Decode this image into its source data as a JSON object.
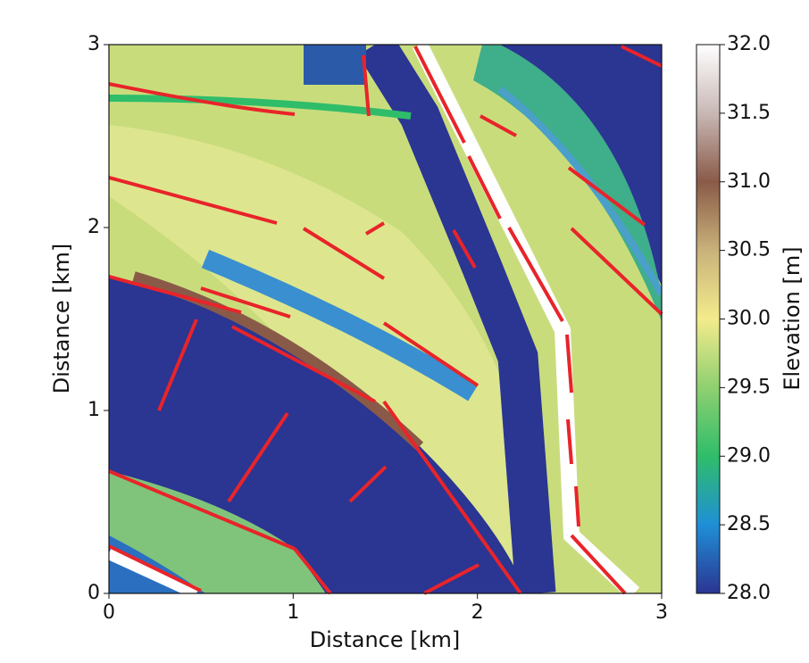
{
  "chart_data": {
    "type": "heatmap",
    "xlabel": "Distance [km]",
    "ylabel": "Distance [km]",
    "xlim": [
      0,
      3
    ],
    "xticks": [
      0,
      1,
      2,
      3
    ],
    "ylim": [
      0,
      3
    ],
    "yticks": [
      0,
      1,
      2,
      3
    ],
    "colorbar": {
      "label": "Elevation [m]",
      "lim": [
        28,
        32
      ],
      "ticks": [
        {
          "value": 28,
          "label": "28.0"
        },
        {
          "value": 28.5,
          "label": "28.5"
        },
        {
          "value": 29,
          "label": "29.0"
        },
        {
          "value": 29.5,
          "label": "29.5"
        },
        {
          "value": 30,
          "label": "30.0"
        },
        {
          "value": 30.5,
          "label": "30.5"
        },
        {
          "value": 31,
          "label": "31.0"
        },
        {
          "value": 31.5,
          "label": "31.5"
        },
        {
          "value": 32,
          "label": "32.0"
        }
      ],
      "colors": [
        "#2b3592",
        "#1f8fd6",
        "#2fbd6a",
        "#8fd070",
        "#f3eb8c",
        "#c9b27a",
        "#8a5a48",
        "#c8b8b5",
        "#ffffff"
      ]
    }
  }
}
